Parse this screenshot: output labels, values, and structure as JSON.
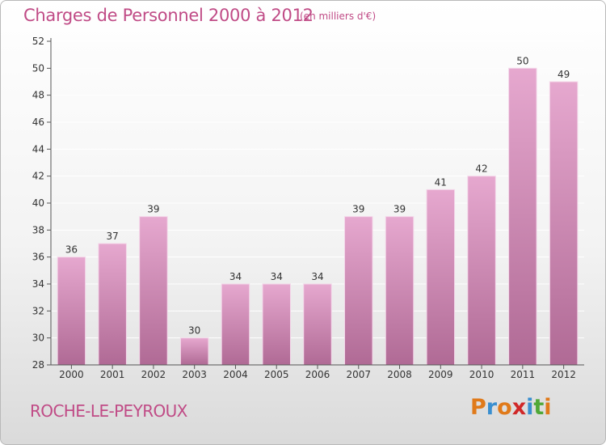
{
  "header": {
    "title": "Charges de Personnel 2000 à 2012",
    "subtitle": "(en milliers d'€)"
  },
  "footer": {
    "place": "ROCHE-LE-PEYROUX",
    "logo_letters": [
      "P",
      "r",
      "o",
      "x",
      "i",
      "t",
      "i"
    ],
    "logo_colors": [
      "#e07a1a",
      "#3a8fd0",
      "#e07a1a",
      "#d02828",
      "#3a8fd0",
      "#50a838",
      "#e07a1a"
    ]
  },
  "colors": {
    "bar_top": "#e6a8cf",
    "bar_bottom": "#b06a95",
    "axis": "#555555",
    "grid": "#ffffff"
  },
  "chart_data": {
    "type": "bar",
    "title": "Charges de Personnel 2000 à 2012",
    "subtitle": "(en milliers d'€)",
    "categories": [
      "2000",
      "2001",
      "2002",
      "2003",
      "2004",
      "2005",
      "2006",
      "2007",
      "2008",
      "2009",
      "2010",
      "2011",
      "2012"
    ],
    "values": [
      36,
      37,
      39,
      30,
      34,
      34,
      34,
      39,
      39,
      41,
      42,
      50,
      49
    ],
    "ylim": [
      28,
      52
    ],
    "yticks": [
      28,
      30,
      32,
      34,
      36,
      38,
      40,
      42,
      44,
      46,
      48,
      50,
      52
    ],
    "xlabel": "",
    "ylabel": "",
    "grid": true
  }
}
